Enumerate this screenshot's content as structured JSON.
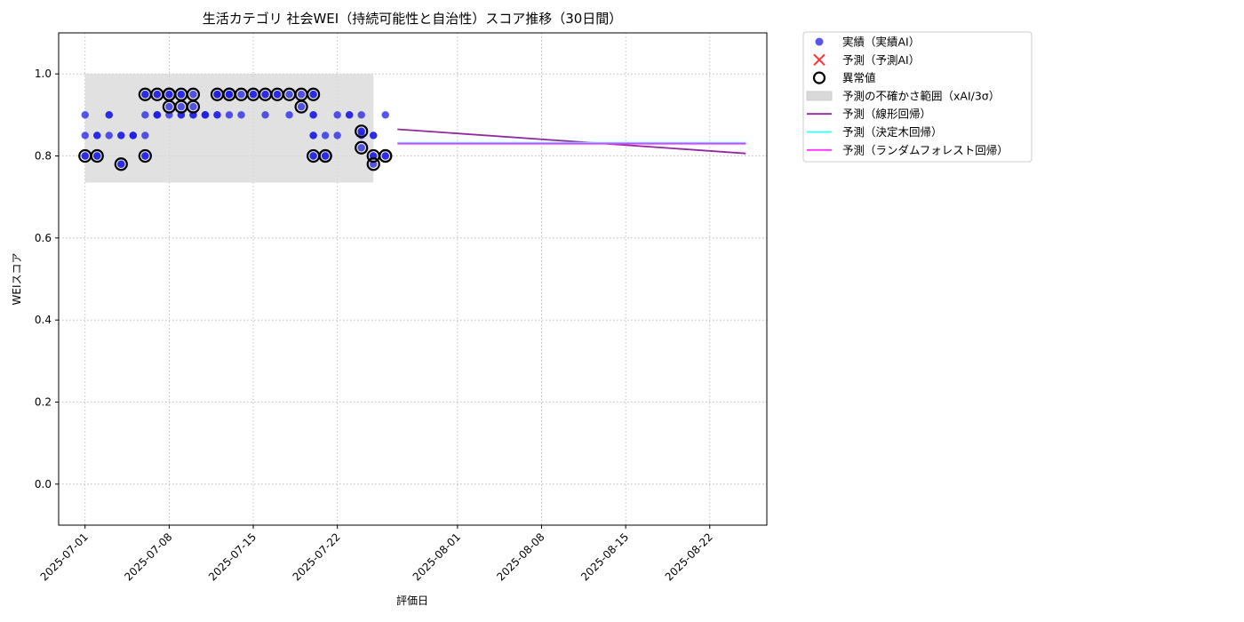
{
  "chart_data": {
    "type": "scatter",
    "title": "生活カテゴリ 社会WEI（持続可能性と自治性）スコア推移（30日間）",
    "xlabel": "評価日",
    "ylabel": "WEIスコア",
    "xlim": [
      "2025-06-28",
      "2025-08-27"
    ],
    "ylim": [
      -0.1,
      1.1
    ],
    "grid": true,
    "legend_position": "outside-top-right",
    "x_ticks": [
      "2025-07-01",
      "2025-07-08",
      "2025-07-15",
      "2025-07-22",
      "2025-08-01",
      "2025-08-08",
      "2025-08-15",
      "2025-08-22"
    ],
    "y_ticks": [
      "0.0",
      "0.2",
      "0.4",
      "0.6",
      "0.8",
      "1.0"
    ],
    "colors": {
      "actual": "#1f1fe6",
      "predicted_ai": "#ff3333",
      "outlier": "#000000",
      "uncertainty": "#d9d9d9",
      "linear": "#8e2a9e",
      "tree": "#33ffff",
      "forest": "#ff33ff"
    },
    "legend": [
      {
        "key": "actual",
        "label": "実績（実績AI）"
      },
      {
        "key": "predicted_ai",
        "label": "予測（予測AI）"
      },
      {
        "key": "outlier",
        "label": "異常値"
      },
      {
        "key": "uncertainty",
        "label": "予測の不確かさ範囲（xAI/3σ）"
      },
      {
        "key": "linear",
        "label": "予測（線形回帰）"
      },
      {
        "key": "tree",
        "label": "予測（決定木回帰）"
      },
      {
        "key": "forest",
        "label": "予測（ランダムフォレスト回帰）"
      }
    ],
    "uncertainty_band": {
      "x_start": "2025-07-01",
      "x_end": "2025-07-25",
      "y_low": 0.735,
      "y_high": 1.0
    },
    "series": [
      {
        "name": "実績（実績AI）",
        "type": "scatter",
        "points": [
          [
            "2025-07-01",
            0.8
          ],
          [
            "2025-07-01",
            0.9
          ],
          [
            "2025-07-01",
            0.8
          ],
          [
            "2025-07-01",
            0.85
          ],
          [
            "2025-07-02",
            0.8
          ],
          [
            "2025-07-02",
            0.8
          ],
          [
            "2025-07-02",
            0.85
          ],
          [
            "2025-07-02",
            0.85
          ],
          [
            "2025-07-03",
            0.9
          ],
          [
            "2025-07-03",
            0.9
          ],
          [
            "2025-07-03",
            0.85
          ],
          [
            "2025-07-04",
            0.78
          ],
          [
            "2025-07-04",
            0.78
          ],
          [
            "2025-07-04",
            0.85
          ],
          [
            "2025-07-04",
            0.85
          ],
          [
            "2025-07-05",
            0.85
          ],
          [
            "2025-07-05",
            0.85
          ],
          [
            "2025-07-05",
            0.85
          ],
          [
            "2025-07-06",
            0.9
          ],
          [
            "2025-07-06",
            0.95
          ],
          [
            "2025-07-06",
            0.95
          ],
          [
            "2025-07-06",
            0.85
          ],
          [
            "2025-07-06",
            0.8
          ],
          [
            "2025-07-06",
            0.8
          ],
          [
            "2025-07-07",
            0.9
          ],
          [
            "2025-07-07",
            0.9
          ],
          [
            "2025-07-07",
            0.95
          ],
          [
            "2025-07-07",
            0.95
          ],
          [
            "2025-07-07",
            0.9
          ],
          [
            "2025-07-08",
            0.95
          ],
          [
            "2025-07-08",
            0.95
          ],
          [
            "2025-07-08",
            0.92
          ],
          [
            "2025-07-08",
            0.9
          ],
          [
            "2025-07-09",
            0.9
          ],
          [
            "2025-07-09",
            0.92
          ],
          [
            "2025-07-09",
            0.9
          ],
          [
            "2025-07-09",
            0.95
          ],
          [
            "2025-07-09",
            0.95
          ],
          [
            "2025-07-10",
            0.95
          ],
          [
            "2025-07-10",
            0.92
          ],
          [
            "2025-07-10",
            0.9
          ],
          [
            "2025-07-10",
            0.9
          ],
          [
            "2025-07-11",
            0.9
          ],
          [
            "2025-07-11",
            0.9
          ],
          [
            "2025-07-11",
            0.9
          ],
          [
            "2025-07-12",
            0.9
          ],
          [
            "2025-07-12",
            0.95
          ],
          [
            "2025-07-12",
            0.95
          ],
          [
            "2025-07-12",
            0.9
          ],
          [
            "2025-07-12",
            0.95
          ],
          [
            "2025-07-13",
            0.95
          ],
          [
            "2025-07-13",
            0.95
          ],
          [
            "2025-07-13",
            0.9
          ],
          [
            "2025-07-13",
            0.95
          ],
          [
            "2025-07-14",
            0.95
          ],
          [
            "2025-07-14",
            0.9
          ],
          [
            "2025-07-15",
            0.95
          ],
          [
            "2025-07-15",
            0.95
          ],
          [
            "2025-07-16",
            0.9
          ],
          [
            "2025-07-16",
            0.95
          ],
          [
            "2025-07-16",
            0.95
          ],
          [
            "2025-07-17",
            0.95
          ],
          [
            "2025-07-17",
            0.95
          ],
          [
            "2025-07-18",
            0.95
          ],
          [
            "2025-07-18",
            0.9
          ],
          [
            "2025-07-19",
            0.95
          ],
          [
            "2025-07-19",
            0.92
          ],
          [
            "2025-07-20",
            0.95
          ],
          [
            "2025-07-20",
            0.95
          ],
          [
            "2025-07-20",
            0.9
          ],
          [
            "2025-07-20",
            0.85
          ],
          [
            "2025-07-20",
            0.8
          ],
          [
            "2025-07-20",
            0.8
          ],
          [
            "2025-07-20",
            0.85
          ],
          [
            "2025-07-20",
            0.9
          ],
          [
            "2025-07-21",
            0.8
          ],
          [
            "2025-07-21",
            0.85
          ],
          [
            "2025-07-21",
            0.8
          ],
          [
            "2025-07-22",
            0.9
          ],
          [
            "2025-07-22",
            0.85
          ],
          [
            "2025-07-23",
            0.9
          ],
          [
            "2025-07-23",
            0.9
          ],
          [
            "2025-07-24",
            0.86
          ],
          [
            "2025-07-24",
            0.82
          ],
          [
            "2025-07-24",
            0.85
          ],
          [
            "2025-07-24",
            0.9
          ],
          [
            "2025-07-24",
            0.86
          ],
          [
            "2025-07-25",
            0.8
          ],
          [
            "2025-07-25",
            0.85
          ],
          [
            "2025-07-25",
            0.78
          ],
          [
            "2025-07-25",
            0.85
          ],
          [
            "2025-07-25",
            0.8
          ],
          [
            "2025-07-26",
            0.8
          ],
          [
            "2025-07-26",
            0.9
          ],
          [
            "2025-07-26",
            0.8
          ]
        ]
      },
      {
        "name": "異常値",
        "type": "scatter",
        "points": [
          [
            "2025-07-01",
            0.8
          ],
          [
            "2025-07-02",
            0.8
          ],
          [
            "2025-07-04",
            0.78
          ],
          [
            "2025-07-06",
            0.8
          ],
          [
            "2025-07-06",
            0.95
          ],
          [
            "2025-07-07",
            0.95
          ],
          [
            "2025-07-08",
            0.95
          ],
          [
            "2025-07-08",
            0.95
          ],
          [
            "2025-07-08",
            0.92
          ],
          [
            "2025-07-09",
            0.92
          ],
          [
            "2025-07-09",
            0.95
          ],
          [
            "2025-07-10",
            0.95
          ],
          [
            "2025-07-10",
            0.92
          ],
          [
            "2025-07-12",
            0.95
          ],
          [
            "2025-07-13",
            0.95
          ],
          [
            "2025-07-13",
            0.95
          ],
          [
            "2025-07-14",
            0.95
          ],
          [
            "2025-07-15",
            0.95
          ],
          [
            "2025-07-16",
            0.95
          ],
          [
            "2025-07-17",
            0.95
          ],
          [
            "2025-07-18",
            0.95
          ],
          [
            "2025-07-19",
            0.95
          ],
          [
            "2025-07-19",
            0.92
          ],
          [
            "2025-07-20",
            0.95
          ],
          [
            "2025-07-20",
            0.8
          ],
          [
            "2025-07-21",
            0.8
          ],
          [
            "2025-07-21",
            0.8
          ],
          [
            "2025-07-24",
            0.86
          ],
          [
            "2025-07-24",
            0.82
          ],
          [
            "2025-07-25",
            0.8
          ],
          [
            "2025-07-25",
            0.78
          ],
          [
            "2025-07-26",
            0.8
          ],
          [
            "2025-07-26",
            0.8
          ]
        ]
      },
      {
        "name": "予測（線形回帰）",
        "type": "line",
        "points": [
          [
            "2025-07-27",
            0.865
          ],
          [
            "2025-08-25",
            0.806
          ]
        ]
      },
      {
        "name": "予測（決定木回帰）",
        "type": "line",
        "points": [
          [
            "2025-07-27",
            0.832
          ],
          [
            "2025-08-25",
            0.832
          ]
        ]
      },
      {
        "name": "予測（ランダムフォレスト回帰）",
        "type": "line",
        "points": [
          [
            "2025-07-27",
            0.83
          ],
          [
            "2025-08-25",
            0.83
          ]
        ]
      }
    ]
  }
}
